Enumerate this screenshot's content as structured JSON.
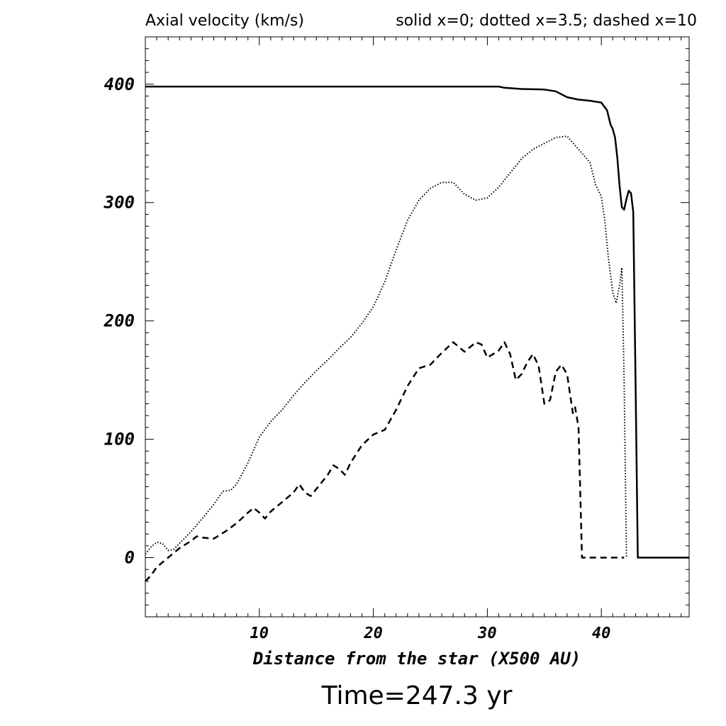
{
  "chart_data": {
    "type": "line",
    "title": "Axial velocity (km/s)",
    "legend_text": "solid x=0; dotted x=3.5; dashed x=10",
    "xlabel": "Distance from the star (X500 AU)",
    "ylabel": "",
    "time_label": "Time=247.3 yr",
    "xlim": [
      0,
      47.7
    ],
    "ylim": [
      -50,
      440
    ],
    "x_ticks": [
      10,
      20,
      30,
      40
    ],
    "y_ticks": [
      0,
      100,
      200,
      300,
      400
    ],
    "grid": false,
    "series": [
      {
        "style": "solid",
        "points": [
          [
            0,
            398
          ],
          [
            10,
            398
          ],
          [
            20,
            398
          ],
          [
            31,
            398
          ],
          [
            31.5,
            397
          ],
          [
            33,
            396
          ],
          [
            35,
            395.5
          ],
          [
            36,
            394
          ],
          [
            37,
            389
          ],
          [
            38,
            387
          ],
          [
            39,
            386
          ],
          [
            40,
            384.5
          ],
          [
            40.5,
            378
          ],
          [
            40.8,
            366
          ],
          [
            41,
            362
          ],
          [
            41.2,
            355
          ],
          [
            41.4,
            338
          ],
          [
            41.6,
            314
          ],
          [
            41.8,
            296
          ],
          [
            42,
            294
          ],
          [
            42.2,
            303
          ],
          [
            42.4,
            310
          ],
          [
            42.6,
            308
          ],
          [
            42.8,
            292
          ],
          [
            43,
            150
          ],
          [
            43.2,
            0
          ],
          [
            47.7,
            0
          ]
        ]
      },
      {
        "style": "dotted",
        "points": [
          [
            0,
            3
          ],
          [
            0.5,
            9
          ],
          [
            1,
            13
          ],
          [
            1.5,
            12
          ],
          [
            2,
            6
          ],
          [
            2.5,
            7
          ],
          [
            3,
            12
          ],
          [
            4,
            22
          ],
          [
            5,
            33
          ],
          [
            6,
            45
          ],
          [
            6.8,
            56
          ],
          [
            7.5,
            57
          ],
          [
            8,
            62
          ],
          [
            9,
            80
          ],
          [
            10,
            102
          ],
          [
            11,
            115
          ],
          [
            12,
            125
          ],
          [
            13,
            137
          ],
          [
            14,
            148
          ],
          [
            15,
            158
          ],
          [
            16,
            167
          ],
          [
            17,
            177
          ],
          [
            18,
            186
          ],
          [
            19,
            198
          ],
          [
            20,
            212
          ],
          [
            21,
            233
          ],
          [
            22,
            260
          ],
          [
            23,
            285
          ],
          [
            24,
            302
          ],
          [
            25,
            312
          ],
          [
            26,
            317
          ],
          [
            27,
            317
          ],
          [
            28,
            307
          ],
          [
            29,
            302
          ],
          [
            30,
            304
          ],
          [
            31,
            313
          ],
          [
            32,
            325
          ],
          [
            33,
            337
          ],
          [
            34,
            345
          ],
          [
            35,
            350
          ],
          [
            36,
            355
          ],
          [
            37,
            356
          ],
          [
            38,
            345
          ],
          [
            39,
            334
          ],
          [
            39.5,
            315
          ],
          [
            40,
            305
          ],
          [
            40.3,
            285
          ],
          [
            40.6,
            255
          ],
          [
            41,
            224
          ],
          [
            41.3,
            215
          ],
          [
            41.6,
            230
          ],
          [
            41.8,
            245
          ],
          [
            42,
            150
          ],
          [
            42.2,
            0
          ]
        ]
      },
      {
        "style": "dashed",
        "points": [
          [
            0,
            -20
          ],
          [
            0.5,
            -15
          ],
          [
            1,
            -8
          ],
          [
            2,
            0
          ],
          [
            3,
            8
          ],
          [
            4,
            14
          ],
          [
            4.5,
            18
          ],
          [
            5,
            17
          ],
          [
            6,
            16
          ],
          [
            7,
            22
          ],
          [
            8,
            29
          ],
          [
            9,
            38
          ],
          [
            9.5,
            42
          ],
          [
            10,
            38
          ],
          [
            10.5,
            33
          ],
          [
            11,
            39
          ],
          [
            12,
            47
          ],
          [
            13,
            55
          ],
          [
            13.5,
            62
          ],
          [
            14,
            55
          ],
          [
            14.5,
            52
          ],
          [
            15,
            58
          ],
          [
            16,
            70
          ],
          [
            16.5,
            78
          ],
          [
            17,
            75
          ],
          [
            17.5,
            70
          ],
          [
            18,
            80
          ],
          [
            19,
            95
          ],
          [
            20,
            104
          ],
          [
            21,
            108
          ],
          [
            22,
            125
          ],
          [
            23,
            145
          ],
          [
            24,
            160
          ],
          [
            25,
            163
          ],
          [
            26,
            173
          ],
          [
            27,
            182
          ],
          [
            28,
            174
          ],
          [
            29,
            182
          ],
          [
            29.5,
            180
          ],
          [
            30,
            169
          ],
          [
            31,
            175
          ],
          [
            31.5,
            182
          ],
          [
            32,
            172
          ],
          [
            32.5,
            150
          ],
          [
            33,
            155
          ],
          [
            33.5,
            165
          ],
          [
            34,
            172
          ],
          [
            34.5,
            162
          ],
          [
            35,
            130
          ],
          [
            35.5,
            133
          ],
          [
            36,
            157
          ],
          [
            36.5,
            163
          ],
          [
            37,
            155
          ],
          [
            37.5,
            122
          ],
          [
            37.7,
            127
          ],
          [
            38,
            110
          ],
          [
            38.3,
            0
          ],
          [
            42,
            0
          ]
        ]
      }
    ]
  }
}
